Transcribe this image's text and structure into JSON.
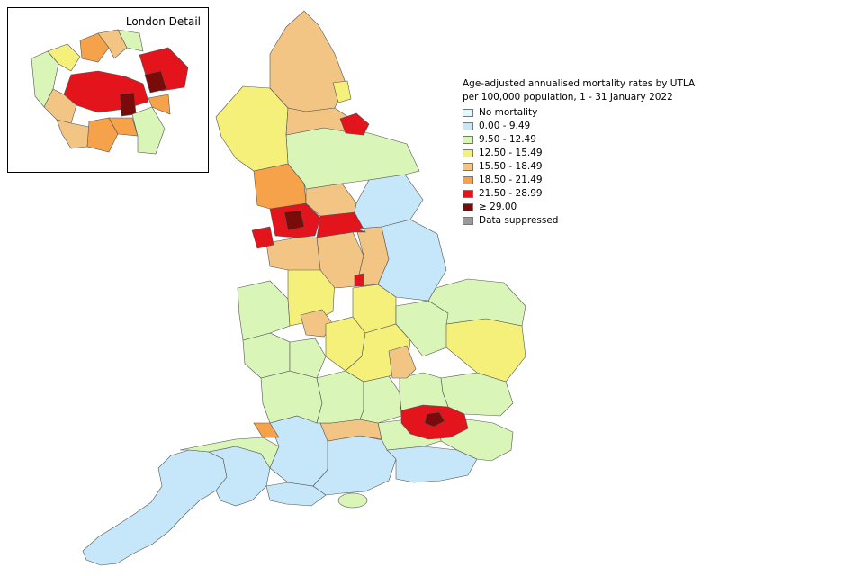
{
  "inset": {
    "title": "London Detail"
  },
  "legend": {
    "title_line1": "Age-adjusted annualised mortality rates by UTLA",
    "title_line2": "per 100,000 population, 1 - 31 January 2022",
    "items": [
      {
        "label": "No mortality",
        "color": "#e3f6fb"
      },
      {
        "label": "0.00 - 9.49",
        "color": "#c6e6f9"
      },
      {
        "label": "9.50 - 12.49",
        "color": "#d9f5b8"
      },
      {
        "label": "12.50 - 15.49",
        "color": "#f5f07a"
      },
      {
        "label": "15.50 - 18.49",
        "color": "#f2c585"
      },
      {
        "label": "18.50 - 21.49",
        "color": "#f5a24a"
      },
      {
        "label": "21.50 - 28.99",
        "color": "#e3141b"
      },
      {
        "label": "≥ 29.00",
        "color": "#7a0b0b"
      },
      {
        "label": "Data suppressed",
        "color": "#9a9a9a"
      }
    ]
  }
}
